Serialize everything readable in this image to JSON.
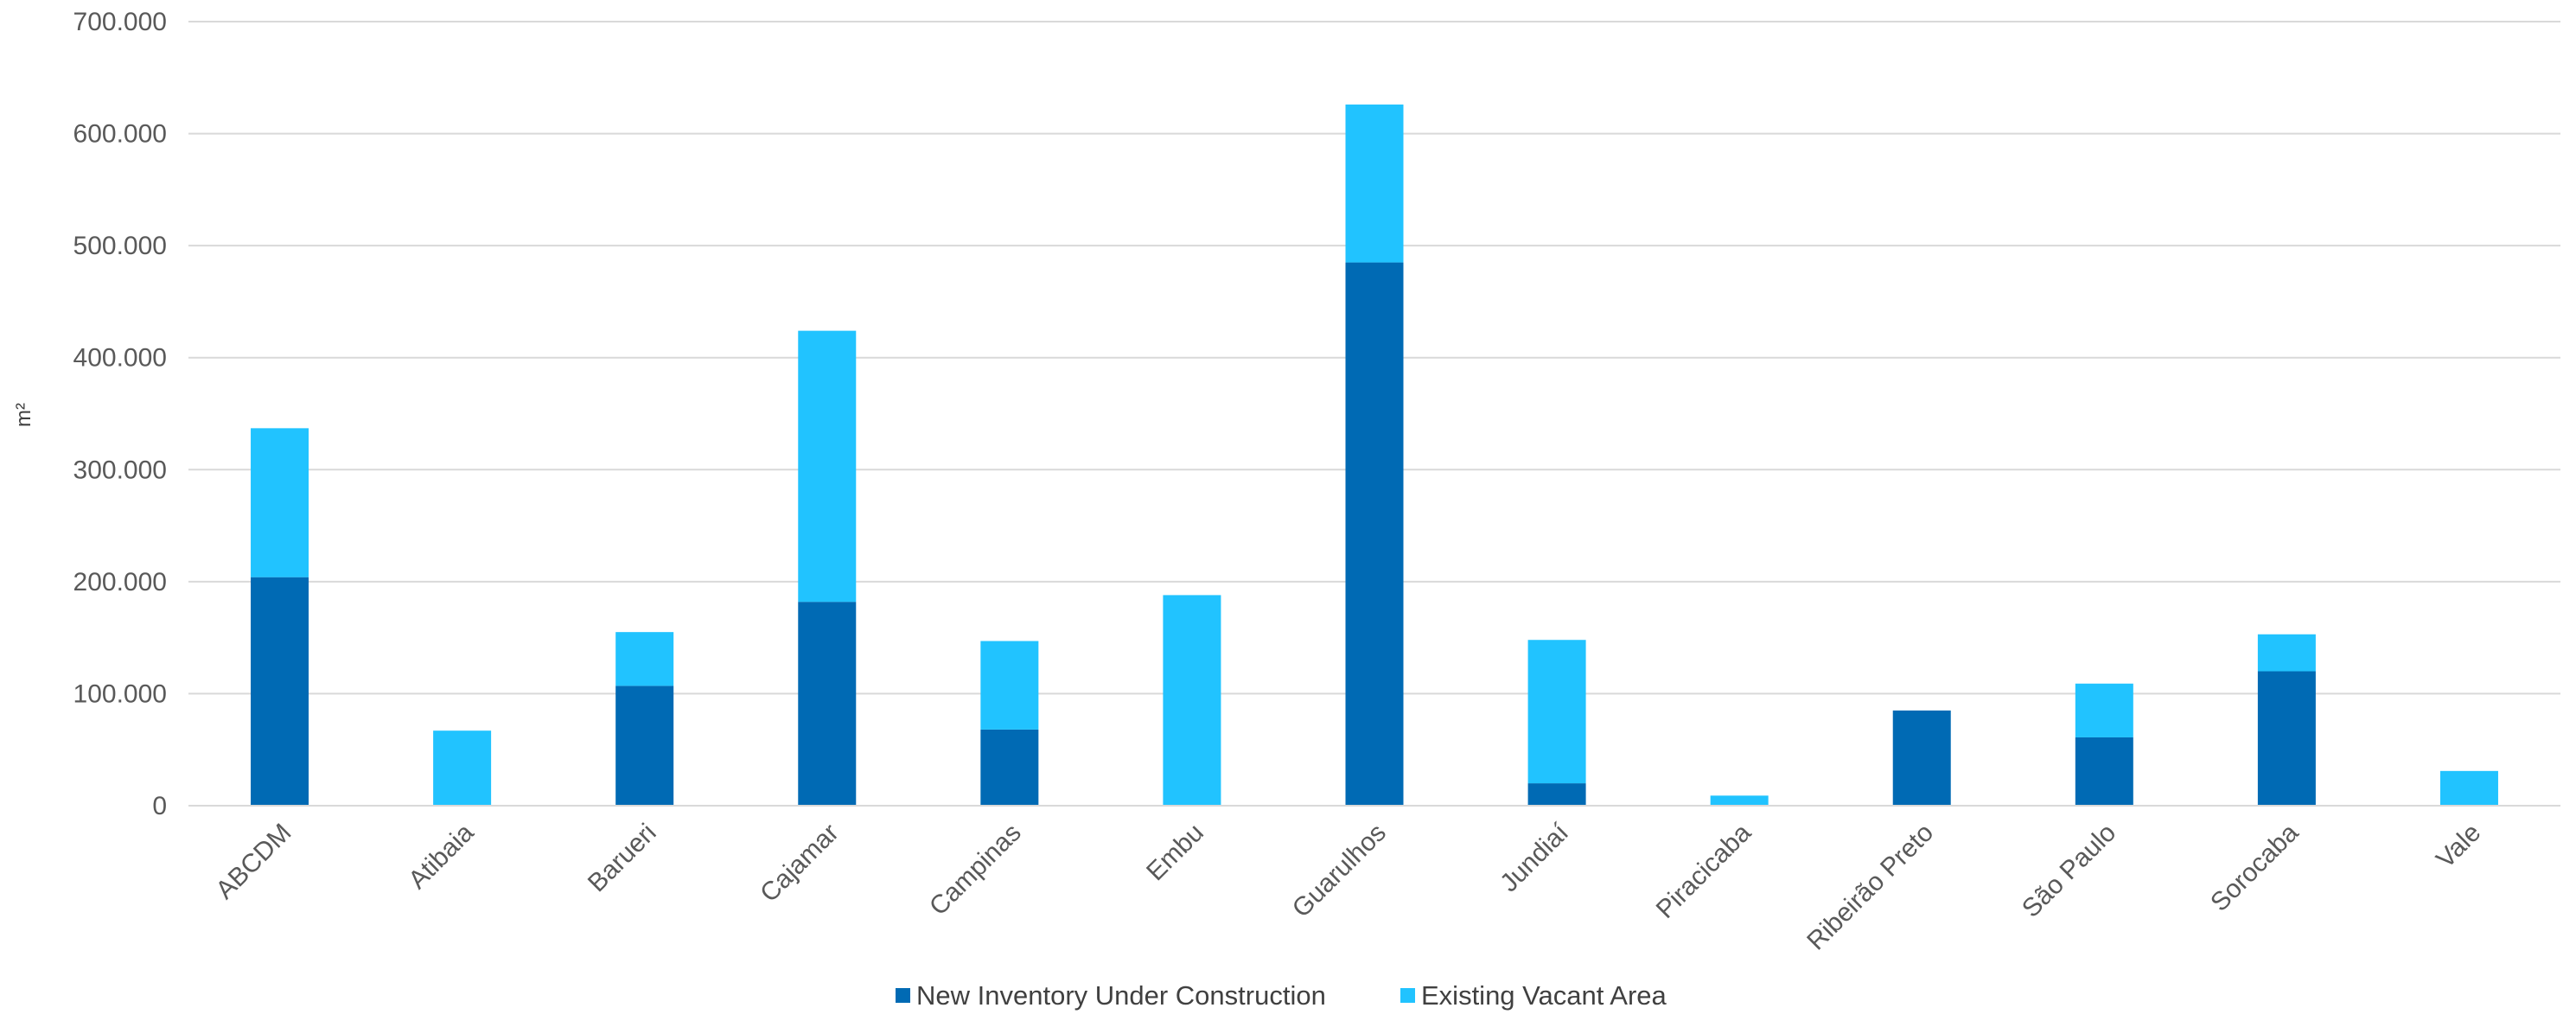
{
  "chart_data": {
    "type": "bar",
    "stacked": true,
    "ylabel": "m²",
    "ylim": [
      0,
      700000
    ],
    "yticks": [
      0,
      100000,
      200000,
      300000,
      400000,
      500000,
      600000,
      700000
    ],
    "ytick_labels": [
      "0",
      "100.000",
      "200.000",
      "300.000",
      "400.000",
      "500.000",
      "600.000",
      "700.000"
    ],
    "grid": true,
    "legend_position": "bottom",
    "categories": [
      "ABCDM",
      "Atibaia",
      "Barueri",
      "Cajamar",
      "Campinas",
      "Embu",
      "Guarulhos",
      "Jundiaí",
      "Piracicaba",
      "Ribeirão Preto",
      "São Paulo",
      "Sorocaba",
      "Vale"
    ],
    "series": [
      {
        "name": "New Inventory Under Construction",
        "color": "#006AB4",
        "values": [
          204000,
          0,
          107000,
          182000,
          68000,
          0,
          485000,
          20000,
          0,
          85000,
          61000,
          120000,
          0
        ]
      },
      {
        "name": "Existing Vacant Area",
        "color": "#21C3FF",
        "values": [
          133000,
          67000,
          48000,
          242000,
          79000,
          188000,
          141000,
          128000,
          9000,
          0,
          48000,
          33000,
          31000
        ]
      }
    ]
  }
}
